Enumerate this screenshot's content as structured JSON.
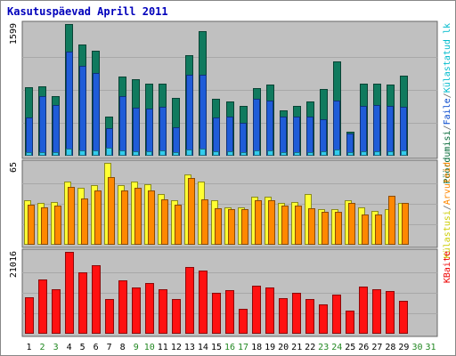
{
  "chart_data": {
    "type": "bar",
    "title": "Kasutuspäevad Aprill 2011",
    "categories": [
      "1",
      "2",
      "3",
      "4",
      "5",
      "6",
      "7",
      "8",
      "9",
      "10",
      "11",
      "12",
      "13",
      "14",
      "15",
      "16",
      "17",
      "18",
      "19",
      "20",
      "21",
      "22",
      "23",
      "24",
      "25",
      "26",
      "27",
      "28",
      "29",
      "30",
      "31"
    ],
    "weekend_days": [
      "2",
      "3",
      "9",
      "10",
      "16",
      "17",
      "23",
      "24",
      "30",
      "31"
    ],
    "panels": [
      {
        "id": "top",
        "ylim": [
          0,
          1599
        ],
        "tick_label": "1599",
        "side_labels": [
          {
            "text": "Pöördumisi",
            "color": "#006633"
          },
          {
            "text": "/",
            "color": "#666666"
          },
          {
            "text": "Faile",
            "color": "#0044cc"
          },
          {
            "text": "/",
            "color": "#666666"
          },
          {
            "text": "Külastatud lk",
            "color": "#00bbcc"
          }
        ],
        "series": [
          {
            "name": "Pöördumisi",
            "color": "#107a5e",
            "values": [
              830,
              840,
              720,
              1599,
              1350,
              1270,
              470,
              960,
              930,
              880,
              870,
              700,
              1220,
              1510,
              690,
              660,
              600,
              820,
              860,
              550,
              610,
              660,
              810,
              1140,
              290,
              870,
              880,
              860,
              970,
              null,
              null
            ]
          },
          {
            "name": "Faile",
            "color": "#1f5cd8",
            "values": [
              460,
              720,
              620,
              1260,
              1090,
              1000,
              340,
              720,
              580,
              570,
              590,
              350,
              980,
              980,
              460,
              480,
              400,
              690,
              670,
              470,
              470,
              470,
              440,
              670,
              270,
              610,
              620,
              600,
              590,
              null,
              null
            ]
          },
          {
            "name": "Külastatud lk",
            "color": "#33ccee",
            "values": [
              45,
              48,
              40,
              85,
              70,
              68,
              95,
              60,
              55,
              55,
              60,
              45,
              75,
              90,
              50,
              55,
              45,
              60,
              60,
              40,
              45,
              45,
              50,
              80,
              45,
              50,
              55,
              55,
              70,
              null,
              null
            ]
          }
        ]
      },
      {
        "id": "middle",
        "ylim": [
          0,
          65
        ],
        "tick_label": "65",
        "side_labels": [
          {
            "text": "Külastusi",
            "color": "#cccc00"
          },
          {
            "text": "/",
            "color": "#666666"
          },
          {
            "text": "Arvuteid",
            "color": "#ff8800"
          }
        ],
        "series": [
          {
            "name": "Külastusi",
            "color": "#ffff33",
            "values": [
              35,
              33,
              34,
              50,
              45,
              47,
              65,
              47,
              50,
              48,
              40,
              35,
              56,
              50,
              35,
              30,
              30,
              38,
              38,
              33,
              34,
              40,
              28,
              28,
              35,
              30,
              27,
              28,
              33,
              null,
              null
            ]
          },
          {
            "name": "Arvuteid",
            "color": "#ff8800",
            "values": [
              32,
              30,
              31,
              46,
              37,
              43,
              54,
              43,
              45,
              43,
              36,
              32,
              53,
              36,
              29,
              28,
              28,
              35,
              35,
              31,
              31,
              29,
              26,
              26,
              33,
              24,
              24,
              39,
              33,
              null,
              null
            ]
          }
        ]
      },
      {
        "id": "bottom",
        "ylim": [
          0,
          21016
        ],
        "tick_label": "21016",
        "side_labels": [
          {
            "text": "KBaite",
            "color": "#ee0000"
          }
        ],
        "series": [
          {
            "name": "KBaite",
            "color": "#ff1111",
            "values": [
              9300,
              14000,
              11500,
              21016,
              15700,
              17500,
              8800,
              13700,
              11900,
              13000,
              11400,
              9000,
              17200,
              16300,
              10500,
              11200,
              6300,
              12400,
              11900,
              9200,
              10400,
              8800,
              7600,
              10100,
              6000,
              12100,
              11500,
              10900,
              8500,
              null,
              null
            ]
          }
        ]
      }
    ]
  }
}
